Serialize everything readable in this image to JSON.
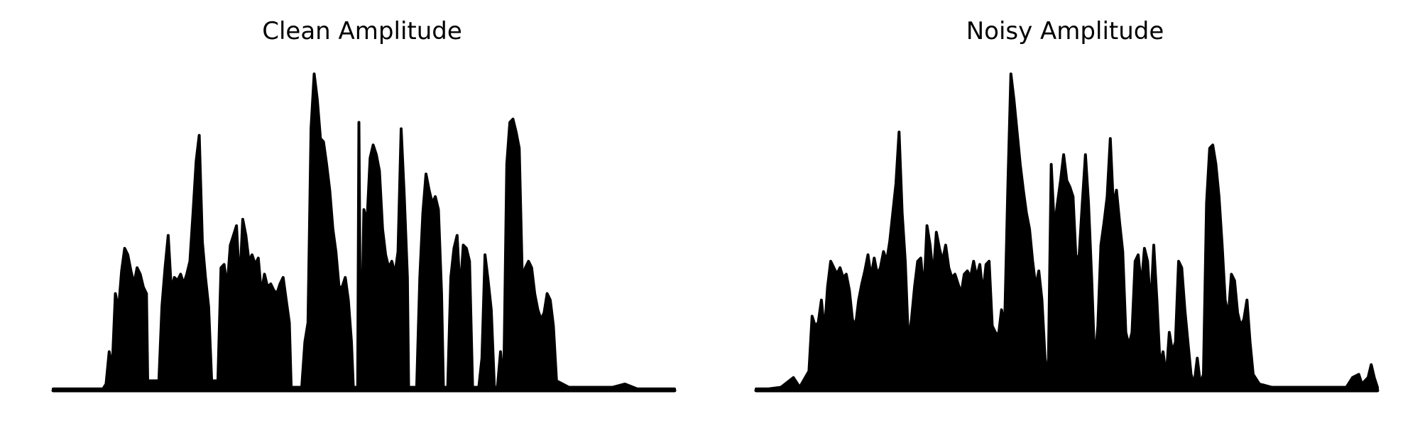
{
  "chart_data": [
    {
      "type": "area",
      "title": "Clean Amplitude",
      "xlabel": "",
      "ylabel": "",
      "axes_visible": false,
      "grid": false,
      "ylim": [
        0,
        1
      ],
      "color": "#000000",
      "envelope": [
        [
          0.0,
          0.005
        ],
        [
          0.02,
          0.005
        ],
        [
          0.04,
          0.005
        ],
        [
          0.06,
          0.005
        ],
        [
          0.08,
          0.005
        ],
        [
          0.085,
          0.02
        ],
        [
          0.09,
          0.12
        ],
        [
          0.095,
          0.07
        ],
        [
          0.1,
          0.3
        ],
        [
          0.105,
          0.25
        ],
        [
          0.11,
          0.37
        ],
        [
          0.115,
          0.44
        ],
        [
          0.12,
          0.42
        ],
        [
          0.125,
          0.37
        ],
        [
          0.13,
          0.33
        ],
        [
          0.135,
          0.38
        ],
        [
          0.14,
          0.36
        ],
        [
          0.145,
          0.32
        ],
        [
          0.15,
          0.3
        ],
        [
          0.152,
          0.03
        ],
        [
          0.17,
          0.03
        ],
        [
          0.175,
          0.26
        ],
        [
          0.18,
          0.38
        ],
        [
          0.185,
          0.48
        ],
        [
          0.19,
          0.31
        ],
        [
          0.195,
          0.35
        ],
        [
          0.2,
          0.34
        ],
        [
          0.205,
          0.36
        ],
        [
          0.21,
          0.33
        ],
        [
          0.215,
          0.36
        ],
        [
          0.22,
          0.4
        ],
        [
          0.225,
          0.55
        ],
        [
          0.23,
          0.71
        ],
        [
          0.235,
          0.79
        ],
        [
          0.24,
          0.46
        ],
        [
          0.245,
          0.35
        ],
        [
          0.25,
          0.26
        ],
        [
          0.255,
          0.03
        ],
        [
          0.265,
          0.03
        ],
        [
          0.27,
          0.38
        ],
        [
          0.275,
          0.39
        ],
        [
          0.28,
          0.32
        ],
        [
          0.285,
          0.45
        ],
        [
          0.29,
          0.48
        ],
        [
          0.295,
          0.51
        ],
        [
          0.3,
          0.32
        ],
        [
          0.305,
          0.53
        ],
        [
          0.31,
          0.48
        ],
        [
          0.315,
          0.4
        ],
        [
          0.32,
          0.42
        ],
        [
          0.325,
          0.39
        ],
        [
          0.33,
          0.41
        ],
        [
          0.335,
          0.3
        ],
        [
          0.34,
          0.36
        ],
        [
          0.345,
          0.32
        ],
        [
          0.35,
          0.33
        ],
        [
          0.355,
          0.31
        ],
        [
          0.36,
          0.3
        ],
        [
          0.365,
          0.33
        ],
        [
          0.37,
          0.35
        ],
        [
          0.375,
          0.28
        ],
        [
          0.38,
          0.21
        ],
        [
          0.383,
          0.01
        ],
        [
          0.4,
          0.01
        ],
        [
          0.405,
          0.15
        ],
        [
          0.41,
          0.21
        ],
        [
          0.415,
          0.81
        ],
        [
          0.42,
          0.98
        ],
        [
          0.425,
          0.9
        ],
        [
          0.43,
          0.78
        ],
        [
          0.435,
          0.77
        ],
        [
          0.44,
          0.7
        ],
        [
          0.445,
          0.62
        ],
        [
          0.45,
          0.5
        ],
        [
          0.455,
          0.43
        ],
        [
          0.46,
          0.32
        ],
        [
          0.465,
          0.32
        ],
        [
          0.47,
          0.35
        ],
        [
          0.475,
          0.28
        ],
        [
          0.48,
          0.15
        ],
        [
          0.483,
          0.01
        ],
        [
          0.49,
          0.01
        ],
        [
          0.492,
          0.83
        ],
        [
          0.495,
          0.01
        ],
        [
          0.5,
          0.56
        ],
        [
          0.505,
          0.52
        ],
        [
          0.51,
          0.72
        ],
        [
          0.515,
          0.76
        ],
        [
          0.52,
          0.73
        ],
        [
          0.525,
          0.68
        ],
        [
          0.53,
          0.5
        ],
        [
          0.535,
          0.42
        ],
        [
          0.54,
          0.38
        ],
        [
          0.545,
          0.4
        ],
        [
          0.55,
          0.36
        ],
        [
          0.555,
          0.43
        ],
        [
          0.56,
          0.81
        ],
        [
          0.565,
          0.6
        ],
        [
          0.57,
          0.35
        ],
        [
          0.572,
          0.01
        ],
        [
          0.585,
          0.01
        ],
        [
          0.59,
          0.35
        ],
        [
          0.595,
          0.55
        ],
        [
          0.6,
          0.67
        ],
        [
          0.605,
          0.62
        ],
        [
          0.61,
          0.58
        ],
        [
          0.615,
          0.6
        ],
        [
          0.62,
          0.56
        ],
        [
          0.625,
          0.3
        ],
        [
          0.628,
          0.01
        ],
        [
          0.635,
          0.01
        ],
        [
          0.64,
          0.35
        ],
        [
          0.645,
          0.44
        ],
        [
          0.65,
          0.48
        ],
        [
          0.655,
          0.3
        ],
        [
          0.66,
          0.45
        ],
        [
          0.665,
          0.44
        ],
        [
          0.67,
          0.4
        ],
        [
          0.675,
          0.01
        ],
        [
          0.685,
          0.01
        ],
        [
          0.69,
          0.1
        ],
        [
          0.695,
          0.42
        ],
        [
          0.7,
          0.34
        ],
        [
          0.705,
          0.25
        ],
        [
          0.71,
          0.01
        ],
        [
          0.715,
          0.01
        ],
        [
          0.72,
          0.12
        ],
        [
          0.725,
          0.01
        ],
        [
          0.73,
          0.7
        ],
        [
          0.735,
          0.83
        ],
        [
          0.74,
          0.84
        ],
        [
          0.745,
          0.8
        ],
        [
          0.75,
          0.75
        ],
        [
          0.755,
          0.35
        ],
        [
          0.76,
          0.38
        ],
        [
          0.765,
          0.4
        ],
        [
          0.77,
          0.38
        ],
        [
          0.775,
          0.3
        ],
        [
          0.78,
          0.25
        ],
        [
          0.785,
          0.22
        ],
        [
          0.79,
          0.24
        ],
        [
          0.795,
          0.3
        ],
        [
          0.8,
          0.28
        ],
        [
          0.805,
          0.2
        ],
        [
          0.81,
          0.03
        ],
        [
          0.83,
          0.01
        ],
        [
          0.86,
          0.01
        ],
        [
          0.9,
          0.01
        ],
        [
          0.92,
          0.02
        ],
        [
          0.94,
          0.005
        ],
        [
          0.97,
          0.005
        ],
        [
          1.0,
          0.005
        ]
      ]
    },
    {
      "type": "area",
      "title": "Noisy Amplitude",
      "xlabel": "",
      "ylabel": "",
      "axes_visible": false,
      "grid": false,
      "ylim": [
        0,
        1
      ],
      "color": "#000000",
      "envelope": [
        [
          0.0,
          0.005
        ],
        [
          0.02,
          0.005
        ],
        [
          0.04,
          0.01
        ],
        [
          0.06,
          0.04
        ],
        [
          0.07,
          0.01
        ],
        [
          0.085,
          0.06
        ],
        [
          0.09,
          0.23
        ],
        [
          0.095,
          0.2
        ],
        [
          0.1,
          0.21
        ],
        [
          0.105,
          0.28
        ],
        [
          0.11,
          0.18
        ],
        [
          0.115,
          0.32
        ],
        [
          0.12,
          0.4
        ],
        [
          0.125,
          0.38
        ],
        [
          0.13,
          0.36
        ],
        [
          0.135,
          0.38
        ],
        [
          0.14,
          0.35
        ],
        [
          0.145,
          0.36
        ],
        [
          0.15,
          0.31
        ],
        [
          0.155,
          0.22
        ],
        [
          0.16,
          0.2
        ],
        [
          0.165,
          0.28
        ],
        [
          0.17,
          0.33
        ],
        [
          0.175,
          0.37
        ],
        [
          0.18,
          0.42
        ],
        [
          0.185,
          0.35
        ],
        [
          0.19,
          0.41
        ],
        [
          0.195,
          0.36
        ],
        [
          0.2,
          0.38
        ],
        [
          0.205,
          0.43
        ],
        [
          0.21,
          0.4
        ],
        [
          0.215,
          0.46
        ],
        [
          0.22,
          0.55
        ],
        [
          0.225,
          0.64
        ],
        [
          0.23,
          0.8
        ],
        [
          0.235,
          0.55
        ],
        [
          0.24,
          0.4
        ],
        [
          0.245,
          0.15
        ],
        [
          0.25,
          0.22
        ],
        [
          0.255,
          0.32
        ],
        [
          0.26,
          0.4
        ],
        [
          0.265,
          0.41
        ],
        [
          0.27,
          0.3
        ],
        [
          0.275,
          0.51
        ],
        [
          0.28,
          0.45
        ],
        [
          0.285,
          0.35
        ],
        [
          0.29,
          0.49
        ],
        [
          0.295,
          0.44
        ],
        [
          0.3,
          0.4
        ],
        [
          0.305,
          0.45
        ],
        [
          0.31,
          0.38
        ],
        [
          0.315,
          0.35
        ],
        [
          0.32,
          0.36
        ],
        [
          0.325,
          0.33
        ],
        [
          0.33,
          0.3
        ],
        [
          0.335,
          0.36
        ],
        [
          0.34,
          0.37
        ],
        [
          0.345,
          0.35
        ],
        [
          0.35,
          0.4
        ],
        [
          0.355,
          0.35
        ],
        [
          0.36,
          0.39
        ],
        [
          0.365,
          0.3
        ],
        [
          0.37,
          0.39
        ],
        [
          0.375,
          0.4
        ],
        [
          0.38,
          0.2
        ],
        [
          0.385,
          0.18
        ],
        [
          0.39,
          0.17
        ],
        [
          0.395,
          0.25
        ],
        [
          0.4,
          0.2
        ],
        [
          0.405,
          0.62
        ],
        [
          0.41,
          0.98
        ],
        [
          0.415,
          0.9
        ],
        [
          0.42,
          0.8
        ],
        [
          0.425,
          0.7
        ],
        [
          0.43,
          0.62
        ],
        [
          0.435,
          0.55
        ],
        [
          0.44,
          0.5
        ],
        [
          0.445,
          0.4
        ],
        [
          0.45,
          0.32
        ],
        [
          0.455,
          0.37
        ],
        [
          0.46,
          0.28
        ],
        [
          0.465,
          0.1
        ],
        [
          0.47,
          0.03
        ],
        [
          0.475,
          0.7
        ],
        [
          0.48,
          0.5
        ],
        [
          0.485,
          0.58
        ],
        [
          0.49,
          0.65
        ],
        [
          0.495,
          0.73
        ],
        [
          0.5,
          0.65
        ],
        [
          0.505,
          0.63
        ],
        [
          0.51,
          0.6
        ],
        [
          0.515,
          0.4
        ],
        [
          0.52,
          0.42
        ],
        [
          0.525,
          0.58
        ],
        [
          0.53,
          0.73
        ],
        [
          0.535,
          0.58
        ],
        [
          0.54,
          0.35
        ],
        [
          0.545,
          0.08
        ],
        [
          0.55,
          0.2
        ],
        [
          0.555,
          0.45
        ],
        [
          0.56,
          0.52
        ],
        [
          0.565,
          0.6
        ],
        [
          0.57,
          0.78
        ],
        [
          0.575,
          0.57
        ],
        [
          0.58,
          0.62
        ],
        [
          0.585,
          0.52
        ],
        [
          0.59,
          0.43
        ],
        [
          0.595,
          0.18
        ],
        [
          0.6,
          0.14
        ],
        [
          0.605,
          0.18
        ],
        [
          0.61,
          0.4
        ],
        [
          0.615,
          0.42
        ],
        [
          0.62,
          0.32
        ],
        [
          0.625,
          0.44
        ],
        [
          0.63,
          0.4
        ],
        [
          0.635,
          0.25
        ],
        [
          0.64,
          0.45
        ],
        [
          0.645,
          0.28
        ],
        [
          0.65,
          0.08
        ],
        [
          0.655,
          0.12
        ],
        [
          0.66,
          0.04
        ],
        [
          0.665,
          0.18
        ],
        [
          0.67,
          0.12
        ],
        [
          0.675,
          0.15
        ],
        [
          0.68,
          0.4
        ],
        [
          0.685,
          0.38
        ],
        [
          0.69,
          0.25
        ],
        [
          0.695,
          0.15
        ],
        [
          0.7,
          0.05
        ],
        [
          0.705,
          0.02
        ],
        [
          0.71,
          0.1
        ],
        [
          0.715,
          0.02
        ],
        [
          0.72,
          0.05
        ],
        [
          0.725,
          0.58
        ],
        [
          0.73,
          0.75
        ],
        [
          0.735,
          0.76
        ],
        [
          0.74,
          0.7
        ],
        [
          0.745,
          0.6
        ],
        [
          0.75,
          0.45
        ],
        [
          0.755,
          0.28
        ],
        [
          0.76,
          0.23
        ],
        [
          0.765,
          0.36
        ],
        [
          0.77,
          0.34
        ],
        [
          0.775,
          0.24
        ],
        [
          0.78,
          0.2
        ],
        [
          0.785,
          0.22
        ],
        [
          0.79,
          0.28
        ],
        [
          0.795,
          0.15
        ],
        [
          0.8,
          0.05
        ],
        [
          0.81,
          0.02
        ],
        [
          0.83,
          0.01
        ],
        [
          0.86,
          0.01
        ],
        [
          0.9,
          0.01
        ],
        [
          0.95,
          0.01
        ],
        [
          0.96,
          0.04
        ],
        [
          0.97,
          0.05
        ],
        [
          0.975,
          0.02
        ],
        [
          0.98,
          0.03
        ],
        [
          0.985,
          0.04
        ],
        [
          0.99,
          0.08
        ],
        [
          0.995,
          0.04
        ],
        [
          1.0,
          0.01
        ]
      ]
    }
  ]
}
